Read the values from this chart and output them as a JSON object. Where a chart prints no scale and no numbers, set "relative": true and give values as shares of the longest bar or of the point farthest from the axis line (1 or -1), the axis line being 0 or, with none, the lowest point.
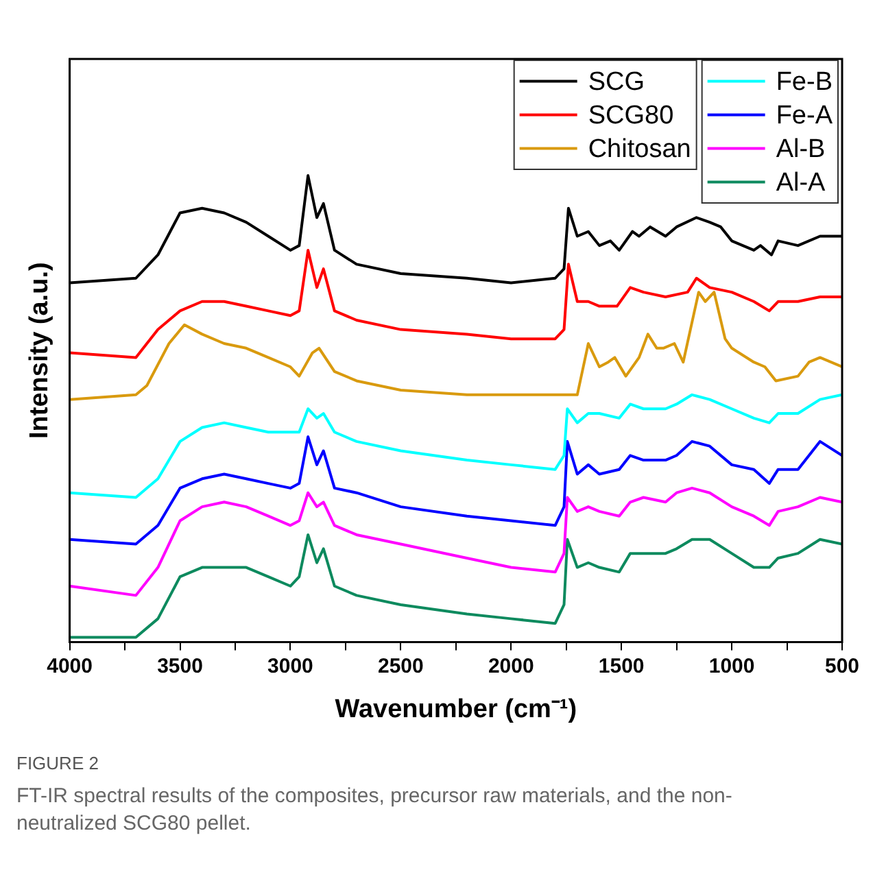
{
  "chart_data": {
    "type": "line",
    "xlabel": "Wavenumber (cm⁻¹)",
    "ylabel": "Intensity (a.u.)",
    "relative": true,
    "legend": "top right",
    "grid": false,
    "xlim": [
      4000,
      500
    ],
    "xticks": [
      4000,
      {
        "value": 3750,
        "label": null
      },
      3500,
      {
        "value": 3250,
        "label": null
      },
      3000,
      {
        "value": 2750,
        "label": null
      },
      2500,
      {
        "value": 2250,
        "label": null
      },
      2000,
      {
        "value": 1750,
        "label": null
      },
      1500,
      {
        "value": 1250,
        "label": null
      },
      1000,
      {
        "value": 750,
        "label": null
      },
      500
    ],
    "annotations": [
      "FIGURE 2",
      "FT-IR spectral results of the composites, precursor raw materials, and the non-neutralized SCG80 pellet."
    ],
    "series": [
      {
        "name": "SCG",
        "color": "#000000",
        "x": [
          4000,
          3700,
          3600,
          3500,
          3400,
          3300,
          3200,
          3100,
          3000,
          2960,
          2920,
          2880,
          2850,
          2800,
          2700,
          2500,
          2200,
          2000,
          1800,
          1760,
          1740,
          1700,
          1650,
          1600,
          1550,
          1510,
          1450,
          1420,
          1370,
          1300,
          1250,
          1160,
          1100,
          1050,
          1000,
          900,
          870,
          820,
          790,
          700,
          600,
          500
        ],
        "values": [
          0.77,
          0.78,
          0.83,
          0.92,
          0.93,
          0.92,
          0.9,
          0.87,
          0.84,
          0.85,
          1.0,
          0.91,
          0.94,
          0.84,
          0.81,
          0.79,
          0.78,
          0.77,
          0.78,
          0.8,
          0.93,
          0.87,
          0.88,
          0.85,
          0.86,
          0.84,
          0.88,
          0.87,
          0.89,
          0.87,
          0.89,
          0.91,
          0.9,
          0.89,
          0.86,
          0.84,
          0.85,
          0.83,
          0.86,
          0.85,
          0.87,
          0.87
        ]
      },
      {
        "name": "SCG80",
        "color": "#ff0000",
        "x": [
          4000,
          3700,
          3600,
          3500,
          3400,
          3300,
          3200,
          3100,
          3000,
          2960,
          2920,
          2880,
          2850,
          2800,
          2700,
          2500,
          2200,
          2000,
          1800,
          1760,
          1740,
          1700,
          1650,
          1600,
          1520,
          1460,
          1400,
          1300,
          1200,
          1160,
          1100,
          1000,
          900,
          830,
          790,
          700,
          600,
          500
        ],
        "values": [
          0.62,
          0.61,
          0.67,
          0.71,
          0.73,
          0.73,
          0.72,
          0.71,
          0.7,
          0.71,
          0.84,
          0.76,
          0.8,
          0.71,
          0.69,
          0.67,
          0.66,
          0.65,
          0.65,
          0.67,
          0.81,
          0.73,
          0.73,
          0.72,
          0.72,
          0.76,
          0.75,
          0.74,
          0.75,
          0.78,
          0.76,
          0.75,
          0.73,
          0.71,
          0.73,
          0.73,
          0.74,
          0.74
        ]
      },
      {
        "name": "Chitosan",
        "color": "#d99a0e",
        "x": [
          4000,
          3700,
          3650,
          3550,
          3480,
          3400,
          3300,
          3200,
          3100,
          3000,
          2960,
          2900,
          2870,
          2800,
          2700,
          2500,
          2200,
          2000,
          1700,
          1650,
          1600,
          1560,
          1530,
          1480,
          1420,
          1380,
          1340,
          1310,
          1260,
          1220,
          1150,
          1120,
          1080,
          1030,
          1000,
          900,
          850,
          800,
          700,
          650,
          600,
          500
        ],
        "values": [
          0.52,
          0.53,
          0.55,
          0.64,
          0.68,
          0.66,
          0.64,
          0.63,
          0.61,
          0.59,
          0.57,
          0.62,
          0.63,
          0.58,
          0.56,
          0.54,
          0.53,
          0.53,
          0.53,
          0.64,
          0.59,
          0.6,
          0.61,
          0.57,
          0.61,
          0.66,
          0.63,
          0.63,
          0.64,
          0.6,
          0.75,
          0.73,
          0.75,
          0.65,
          0.63,
          0.6,
          0.59,
          0.56,
          0.57,
          0.6,
          0.61,
          0.59
        ]
      },
      {
        "name": "Fe-B",
        "color": "#00ffff",
        "x": [
          4000,
          3700,
          3600,
          3500,
          3400,
          3300,
          3200,
          3100,
          3000,
          2960,
          2920,
          2880,
          2850,
          2800,
          2700,
          2500,
          2200,
          2000,
          1800,
          1760,
          1745,
          1700,
          1650,
          1600,
          1510,
          1460,
          1400,
          1300,
          1250,
          1180,
          1100,
          1000,
          900,
          830,
          790,
          700,
          600,
          500
        ],
        "values": [
          0.32,
          0.31,
          0.35,
          0.43,
          0.46,
          0.47,
          0.46,
          0.45,
          0.45,
          0.45,
          0.5,
          0.48,
          0.49,
          0.45,
          0.43,
          0.41,
          0.39,
          0.38,
          0.37,
          0.4,
          0.5,
          0.47,
          0.49,
          0.49,
          0.48,
          0.51,
          0.5,
          0.5,
          0.51,
          0.53,
          0.52,
          0.5,
          0.48,
          0.47,
          0.49,
          0.49,
          0.52,
          0.53
        ]
      },
      {
        "name": "Fe-A",
        "color": "#0000ff",
        "x": [
          4000,
          3700,
          3600,
          3500,
          3400,
          3300,
          3200,
          3100,
          3000,
          2960,
          2920,
          2880,
          2850,
          2800,
          2700,
          2500,
          2200,
          2000,
          1800,
          1760,
          1745,
          1700,
          1650,
          1600,
          1510,
          1460,
          1400,
          1300,
          1250,
          1180,
          1100,
          1000,
          900,
          830,
          790,
          700,
          600,
          500
        ],
        "values": [
          0.22,
          0.21,
          0.25,
          0.33,
          0.35,
          0.36,
          0.35,
          0.34,
          0.33,
          0.34,
          0.44,
          0.38,
          0.41,
          0.33,
          0.32,
          0.29,
          0.27,
          0.26,
          0.25,
          0.29,
          0.43,
          0.36,
          0.38,
          0.36,
          0.37,
          0.4,
          0.39,
          0.39,
          0.4,
          0.43,
          0.42,
          0.38,
          0.37,
          0.34,
          0.37,
          0.37,
          0.43,
          0.4
        ]
      },
      {
        "name": "Al-B",
        "color": "#ff00ff",
        "x": [
          4000,
          3700,
          3600,
          3500,
          3400,
          3300,
          3200,
          3100,
          3000,
          2960,
          2920,
          2880,
          2850,
          2800,
          2700,
          2500,
          2200,
          2000,
          1800,
          1760,
          1745,
          1700,
          1650,
          1600,
          1510,
          1460,
          1400,
          1300,
          1250,
          1180,
          1100,
          1000,
          900,
          830,
          790,
          700,
          600,
          500
        ],
        "values": [
          0.12,
          0.1,
          0.16,
          0.26,
          0.29,
          0.3,
          0.29,
          0.27,
          0.25,
          0.26,
          0.32,
          0.29,
          0.3,
          0.25,
          0.23,
          0.21,
          0.18,
          0.16,
          0.15,
          0.19,
          0.31,
          0.28,
          0.29,
          0.28,
          0.27,
          0.3,
          0.31,
          0.3,
          0.32,
          0.33,
          0.32,
          0.29,
          0.27,
          0.25,
          0.28,
          0.29,
          0.31,
          0.3
        ]
      },
      {
        "name": "Al-A",
        "color": "#0d8a5e",
        "x": [
          4000,
          3700,
          3600,
          3500,
          3400,
          3300,
          3200,
          3100,
          3000,
          2960,
          2920,
          2880,
          2850,
          2800,
          2700,
          2500,
          2200,
          2000,
          1800,
          1760,
          1745,
          1700,
          1650,
          1600,
          1510,
          1460,
          1400,
          1300,
          1250,
          1180,
          1100,
          1000,
          900,
          830,
          790,
          700,
          600,
          500
        ],
        "values": [
          0.01,
          0.01,
          0.05,
          0.14,
          0.16,
          0.16,
          0.16,
          0.14,
          0.12,
          0.14,
          0.23,
          0.17,
          0.2,
          0.12,
          0.1,
          0.08,
          0.06,
          0.05,
          0.04,
          0.08,
          0.22,
          0.16,
          0.17,
          0.16,
          0.15,
          0.19,
          0.19,
          0.19,
          0.2,
          0.22,
          0.22,
          0.19,
          0.16,
          0.16,
          0.18,
          0.19,
          0.22,
          0.21
        ]
      }
    ]
  }
}
